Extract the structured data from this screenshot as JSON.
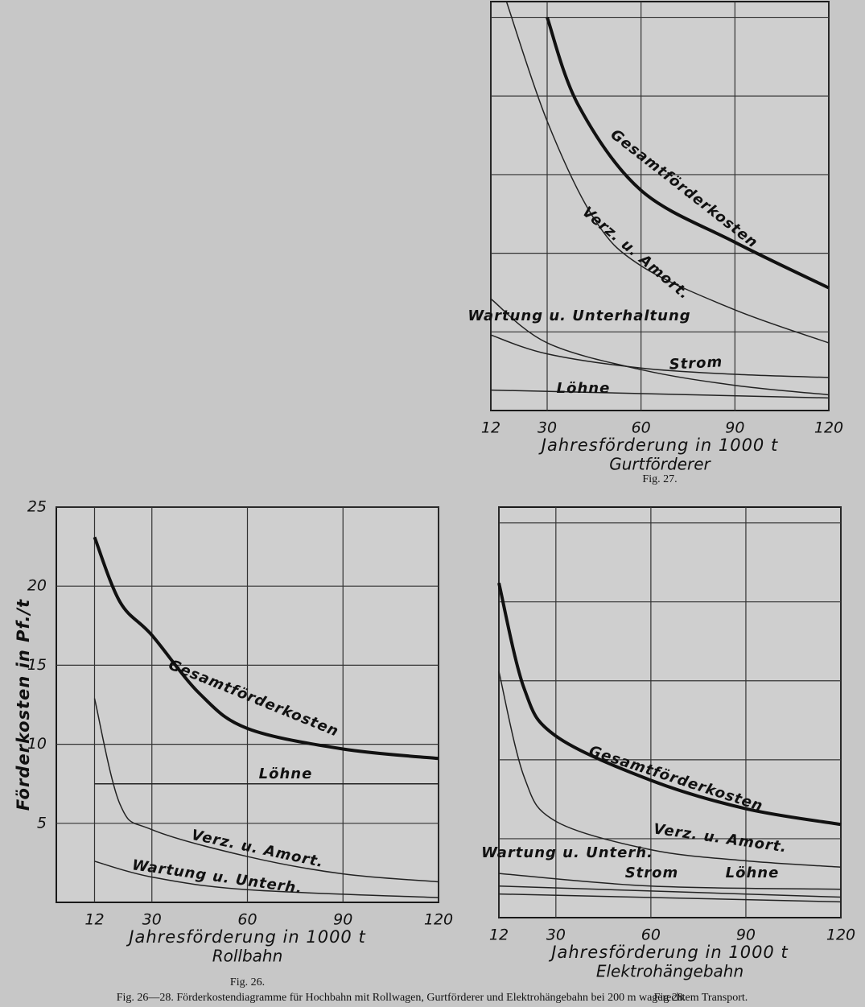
{
  "chart_data": [
    {
      "type": "line",
      "title": "Rollbahn",
      "figure": "Fig. 26.",
      "xlabel": "Jahresförderung in 1000 t",
      "ylabel": "Förderkosten in Pf./t",
      "xlim": [
        0,
        120
      ],
      "xticks": [
        12,
        30,
        60,
        90,
        120
      ],
      "ylim": [
        0,
        25
      ],
      "yticks": [
        5,
        10,
        15,
        20,
        25
      ],
      "series": [
        {
          "name": "Gesamtförderkosten",
          "color": "#111111",
          "linewidth": 4,
          "x": [
            12,
            20,
            30,
            45,
            60,
            90,
            120
          ],
          "values": [
            23.1,
            19.0,
            16.9,
            13.2,
            11.0,
            9.7,
            9.1
          ]
        },
        {
          "name": "Löhne",
          "color": "#222222",
          "linewidth": 1.5,
          "x": [
            12,
            120
          ],
          "values": [
            7.5,
            7.5
          ]
        },
        {
          "name": "Verz. u. Amort.",
          "color": "#222222",
          "linewidth": 1.5,
          "x": [
            12,
            20,
            30,
            60,
            90,
            120
          ],
          "values": [
            12.9,
            6.2,
            4.6,
            2.9,
            1.8,
            1.3
          ]
        },
        {
          "name": "Wartung u. Unterh.",
          "color": "#222222",
          "linewidth": 1.5,
          "x": [
            12,
            30,
            60,
            120
          ],
          "values": [
            2.6,
            1.6,
            0.8,
            0.3
          ]
        }
      ]
    },
    {
      "type": "line",
      "title": "Gurtförderer",
      "figure": "Fig. 27.",
      "xlabel": "Jahresförderung in 1000 t",
      "xlim": [
        12,
        120
      ],
      "xticks": [
        12,
        30,
        60,
        90,
        120
      ],
      "ylim": [
        0,
        26
      ],
      "ygrid": [
        5,
        10,
        15,
        20,
        25
      ],
      "series": [
        {
          "name": "Gesamtförderkosten",
          "color": "#111111",
          "linewidth": 4,
          "x": [
            30,
            40,
            60,
            90,
            120
          ],
          "values": [
            25,
            19.4,
            14.0,
            10.7,
            7.8
          ]
        },
        {
          "name": "Verz. u. Amort.",
          "color": "#222222",
          "linewidth": 1.5,
          "x": [
            17,
            30,
            45,
            60,
            90,
            120
          ],
          "values": [
            26,
            18.4,
            12.2,
            9.2,
            6.4,
            4.3
          ]
        },
        {
          "name": "Wartung u. Unterhaltung",
          "color": "#222222",
          "linewidth": 1.5,
          "x": [
            12,
            30,
            60,
            90,
            120
          ],
          "values": [
            7.1,
            4.3,
            2.6,
            1.6,
            1.0
          ]
        },
        {
          "name": "Strom",
          "color": "#222222",
          "linewidth": 1.5,
          "x": [
            12,
            30,
            60,
            90,
            120
          ],
          "values": [
            4.8,
            3.6,
            2.7,
            2.3,
            2.1
          ]
        },
        {
          "name": "Löhne",
          "color": "#222222",
          "linewidth": 1.5,
          "x": [
            12,
            120
          ],
          "values": [
            1.3,
            0.8
          ]
        }
      ]
    },
    {
      "type": "line",
      "title": "Elektrohängebahn",
      "figure": "Fig 28.",
      "xlabel": "Jahresförderung in 1000 t",
      "xlim": [
        12,
        120
      ],
      "xticks": [
        12,
        30,
        60,
        90,
        120
      ],
      "ylim": [
        0,
        26
      ],
      "ygrid": [
        5,
        10,
        15,
        20,
        25
      ],
      "series": [
        {
          "name": "Gesamtförderkosten",
          "color": "#111111",
          "linewidth": 4,
          "x": [
            12,
            20,
            30,
            60,
            90,
            120
          ],
          "values": [
            21.2,
            14.5,
            11.5,
            8.7,
            6.9,
            5.9
          ]
        },
        {
          "name": "Verz. u. Amort.",
          "color": "#222222",
          "linewidth": 1.5,
          "x": [
            12,
            20,
            30,
            60,
            90,
            120
          ],
          "values": [
            15.6,
            8.9,
            6.1,
            4.3,
            3.6,
            3.2
          ]
        },
        {
          "name": "Wartung u. Unterh.",
          "color": "#222222",
          "linewidth": 1.5,
          "x": [
            12,
            60,
            120
          ],
          "values": [
            2.8,
            2.0,
            1.8
          ]
        },
        {
          "name": "Strom",
          "color": "#222222",
          "linewidth": 1.5,
          "x": [
            12,
            120
          ],
          "values": [
            2.0,
            1.3
          ]
        },
        {
          "name": "Löhne",
          "color": "#222222",
          "linewidth": 1.5,
          "x": [
            12,
            120
          ],
          "values": [
            1.5,
            1.0
          ]
        }
      ]
    }
  ],
  "caption": "Fig. 26—28. Förderkostendiagramme für Hochbahn mit Rollwagen, Gurtförderer und Elektrohängebahn bei 200 m wagerechtem Transport."
}
